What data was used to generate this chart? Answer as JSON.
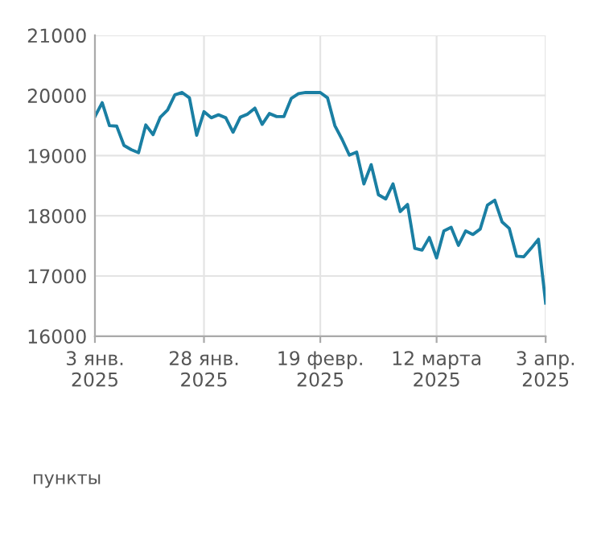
{
  "chart_data": {
    "type": "line",
    "categories": [
      "3 янв.\n2025",
      null,
      null,
      null,
      null,
      null,
      null,
      null,
      null,
      null,
      null,
      null,
      null,
      null,
      null,
      "28 янв.\n2025",
      null,
      null,
      null,
      null,
      null,
      null,
      null,
      null,
      null,
      null,
      null,
      null,
      null,
      null,
      null,
      "19 февр.\n2025",
      null,
      null,
      null,
      null,
      null,
      null,
      null,
      null,
      null,
      null,
      null,
      null,
      null,
      null,
      null,
      "12 марта\n2025",
      null,
      null,
      null,
      null,
      null,
      null,
      null,
      null,
      null,
      null,
      null,
      null,
      null,
      null,
      "3 апр.\n2025"
    ],
    "series": [
      {
        "color": "#1a7fa3",
        "values": [
          19650,
          19880,
          19500,
          19490,
          19170,
          19100,
          19050,
          19510,
          19350,
          19640,
          19760,
          20010,
          20050,
          19960,
          19340,
          19730,
          19630,
          19680,
          19630,
          19390,
          19640,
          19690,
          19790,
          19520,
          19700,
          19650,
          19650,
          19950,
          20030,
          20050,
          20050,
          20050,
          19960,
          19500,
          19270,
          19010,
          19060,
          18530,
          18850,
          18350,
          18280,
          18530,
          18070,
          18190,
          17460,
          17430,
          17640,
          17300,
          17750,
          17810,
          17510,
          17750,
          17690,
          17780,
          18180,
          18260,
          17900,
          17790,
          17330,
          17320,
          17460,
          17610,
          16550
        ]
      }
    ],
    "ylim": [
      16000,
      21000
    ],
    "yticks": [
      16000,
      17000,
      18000,
      19000,
      20000,
      21000
    ],
    "annotations": [
      "пункты"
    ],
    "grid": true,
    "marker": "none",
    "line_style": "solid"
  }
}
